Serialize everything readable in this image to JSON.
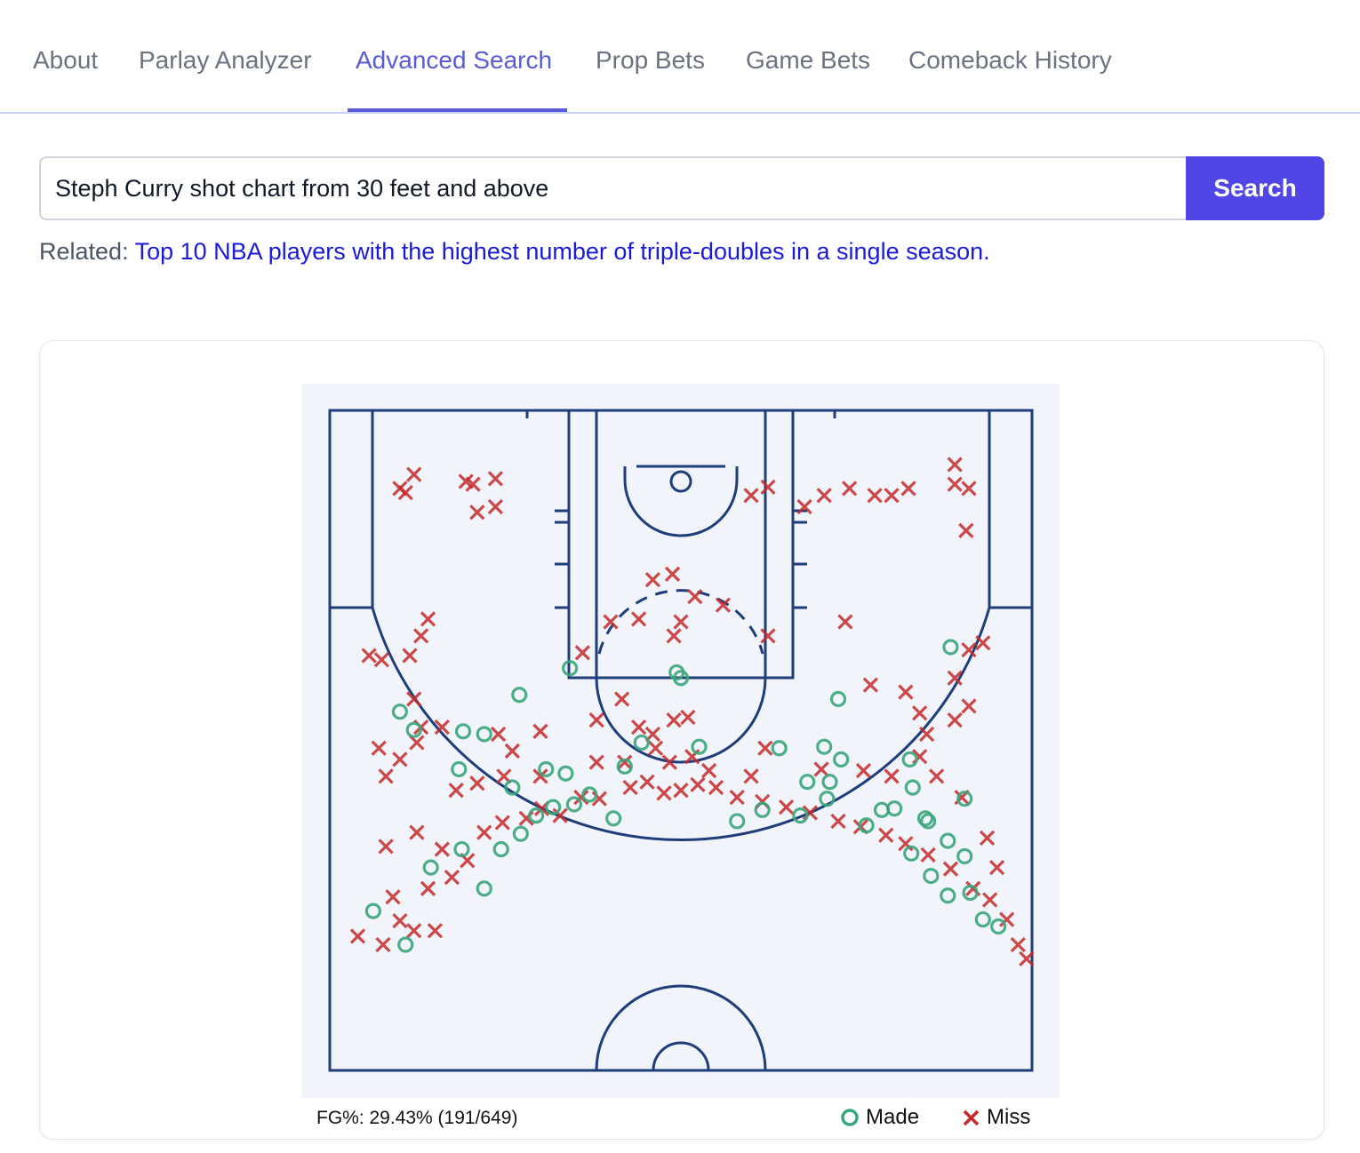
{
  "tabs": [
    {
      "label": "About",
      "active": false
    },
    {
      "label": "Parlay Analyzer",
      "active": false
    },
    {
      "label": "Advanced Search",
      "active": true
    },
    {
      "label": "Prop Bets",
      "active": false
    },
    {
      "label": "Game Bets",
      "active": false
    },
    {
      "label": "Comeback History",
      "active": false
    }
  ],
  "search": {
    "value": "Steph Curry shot chart from 30 feet and above",
    "button_label": "Search"
  },
  "related": {
    "label": "Related:",
    "link_text": "Top 10 NBA players with the highest number of triple-doubles in a single season."
  },
  "chart_data": {
    "type": "scatter",
    "annotation": "FG%: 29.43% (191/649)",
    "made_count": 191,
    "attempt_count": 649,
    "fg_percent": 29.43,
    "legend": [
      {
        "name": "Made",
        "marker": "circle",
        "color": "#3aa57b"
      },
      {
        "name": "Miss",
        "marker": "x",
        "color": "#c62828"
      }
    ],
    "legend_placement": "bottom-right",
    "xlim": [
      -250,
      250
    ],
    "ylim": [
      -52,
      470
    ],
    "made_points_sample": [
      [
        -219,
        306
      ],
      [
        -196,
        330
      ],
      [
        -178,
        275
      ],
      [
        -156,
        262
      ],
      [
        -140,
        290
      ],
      [
        -128,
        262
      ],
      [
        -114,
        251
      ],
      [
        -103,
        238
      ],
      [
        -91,
        232
      ],
      [
        -76,
        230
      ],
      [
        -65,
        223
      ],
      [
        -48,
        240
      ],
      [
        -158,
        205
      ],
      [
        -120,
        218
      ],
      [
        -96,
        205
      ],
      [
        -82,
        208
      ],
      [
        -140,
        180
      ],
      [
        -190,
        177
      ],
      [
        -200,
        164
      ],
      [
        -155,
        178
      ],
      [
        -28,
        186
      ],
      [
        -40,
        203
      ],
      [
        -115,
        152
      ],
      [
        -79,
        133
      ],
      [
        0,
        140
      ],
      [
        -3,
        136
      ],
      [
        13,
        189
      ],
      [
        40,
        242
      ],
      [
        58,
        234
      ],
      [
        85,
        238
      ],
      [
        104,
        226
      ],
      [
        90,
        214
      ],
      [
        106,
        214
      ],
      [
        132,
        245
      ],
      [
        143,
        234
      ],
      [
        165,
        218
      ],
      [
        174,
        240
      ],
      [
        190,
        256
      ],
      [
        202,
        267
      ],
      [
        178,
        281
      ],
      [
        206,
        293
      ],
      [
        226,
        317
      ],
      [
        215,
        312
      ],
      [
        190,
        295
      ],
      [
        164,
        265
      ],
      [
        152,
        233
      ],
      [
        163,
        198
      ],
      [
        176,
        242
      ],
      [
        202,
        226
      ],
      [
        114,
        198
      ],
      [
        102,
        189
      ],
      [
        70,
        190
      ],
      [
        112,
        155
      ],
      [
        192,
        118
      ]
    ],
    "miss_points_sample": [
      [
        -230,
        324
      ],
      [
        -200,
        313
      ],
      [
        -212,
        330
      ],
      [
        -190,
        320
      ],
      [
        -175,
        320
      ],
      [
        -205,
        296
      ],
      [
        -180,
        290
      ],
      [
        -163,
        282
      ],
      [
        -152,
        270
      ],
      [
        -140,
        250
      ],
      [
        -127,
        243
      ],
      [
        -110,
        240
      ],
      [
        -99,
        233
      ],
      [
        -86,
        238
      ],
      [
        -71,
        225
      ],
      [
        -58,
        226
      ],
      [
        -36,
        218
      ],
      [
        -24,
        214
      ],
      [
        -12,
        222
      ],
      [
        0,
        220
      ],
      [
        12,
        216
      ],
      [
        25,
        218
      ],
      [
        40,
        225
      ],
      [
        58,
        228
      ],
      [
        75,
        232
      ],
      [
        92,
        236
      ],
      [
        112,
        242
      ],
      [
        128,
        246
      ],
      [
        146,
        252
      ],
      [
        160,
        258
      ],
      [
        176,
        266
      ],
      [
        192,
        276
      ],
      [
        208,
        290
      ],
      [
        220,
        298
      ],
      [
        232,
        312
      ],
      [
        240,
        330
      ],
      [
        246,
        340
      ],
      [
        -210,
        260
      ],
      [
        -188,
        250
      ],
      [
        -170,
        262
      ],
      [
        -160,
        220
      ],
      [
        -145,
        215
      ],
      [
        -126,
        210
      ],
      [
        -100,
        210
      ],
      [
        -60,
        200
      ],
      [
        -40,
        200
      ],
      [
        -18,
        190
      ],
      [
        -8,
        200
      ],
      [
        8,
        196
      ],
      [
        20,
        206
      ],
      [
        -20,
        180
      ],
      [
        -5,
        170
      ],
      [
        5,
        168
      ],
      [
        -30,
        175
      ],
      [
        50,
        210
      ],
      [
        60,
        190
      ],
      [
        100,
        205
      ],
      [
        130,
        206
      ],
      [
        150,
        210
      ],
      [
        170,
        196
      ],
      [
        175,
        180
      ],
      [
        -190,
        155
      ],
      [
        -185,
        175
      ],
      [
        -170,
        175
      ],
      [
        -130,
        180
      ],
      [
        -120,
        192
      ],
      [
        -100,
        178
      ],
      [
        -60,
        170
      ],
      [
        -42,
        155
      ],
      [
        160,
        150
      ],
      [
        170,
        165
      ],
      [
        195,
        170
      ],
      [
        205,
        160
      ],
      [
        195,
        140
      ],
      [
        205,
        120
      ],
      [
        215,
        115
      ],
      [
        -213,
        127
      ],
      [
        -193,
        124
      ],
      [
        -185,
        110
      ],
      [
        -70,
        122
      ],
      [
        -50,
        100
      ],
      [
        -30,
        98
      ],
      [
        0,
        100
      ],
      [
        -5,
        110
      ],
      [
        62,
        110
      ],
      [
        117,
        100
      ],
      [
        135,
        145
      ],
      [
        182,
        210
      ],
      [
        200,
        225
      ],
      [
        225,
        275
      ],
      [
        218,
        254
      ],
      [
        -210,
        210
      ],
      [
        -215,
        190
      ],
      [
        -200,
        198
      ],
      [
        -188,
        186
      ],
      [
        -20,
        70
      ],
      [
        10,
        82
      ],
      [
        -6,
        66
      ],
      [
        30,
        88
      ],
      [
        -196,
        8
      ],
      [
        -190,
        -5
      ],
      [
        -200,
        5
      ],
      [
        -148,
        2
      ],
      [
        -153,
        0
      ],
      [
        -132,
        -2
      ],
      [
        -145,
        22
      ],
      [
        -132,
        18
      ],
      [
        50,
        10
      ],
      [
        62,
        4
      ],
      [
        88,
        18
      ],
      [
        102,
        10
      ],
      [
        120,
        5
      ],
      [
        138,
        10
      ],
      [
        150,
        10
      ],
      [
        162,
        5
      ],
      [
        195,
        2
      ],
      [
        203,
        35
      ],
      [
        195,
        -12
      ],
      [
        205,
        5
      ],
      [
        -222,
        124
      ],
      [
        -180,
        98
      ]
    ]
  }
}
